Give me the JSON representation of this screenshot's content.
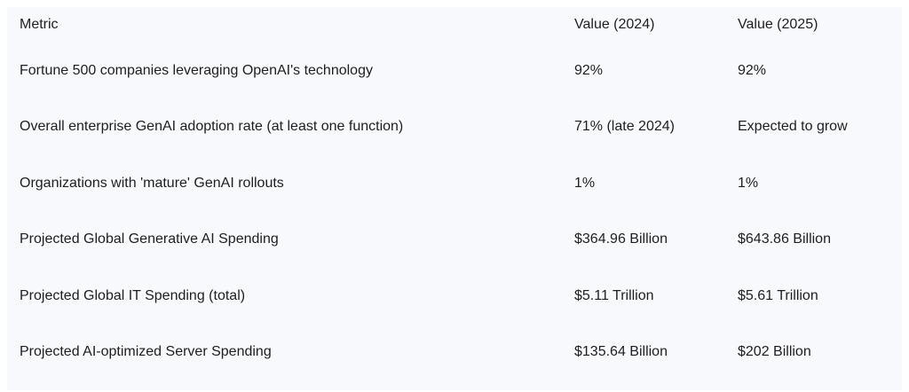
{
  "table": {
    "headers": [
      "Metric",
      "Value (2024)",
      "Value (2025)"
    ],
    "rows": [
      [
        "Fortune 500 companies leveraging OpenAI's technology",
        "92%",
        "92%"
      ],
      [
        "Overall enterprise GenAI adoption rate (at least one function)",
        "71% (late 2024)",
        "Expected to grow"
      ],
      [
        "Organizations with 'mature' GenAI rollouts",
        "1%",
        "1%"
      ],
      [
        "Projected Global Generative AI Spending",
        "$364.96 Billion",
        "$643.86 Billion"
      ],
      [
        "Projected Global IT Spending (total)",
        "$5.11 Trillion",
        "$5.61 Trillion"
      ],
      [
        "Projected AI-optimized Server Spending",
        "$135.64 Billion",
        "$202 Billion"
      ]
    ]
  }
}
